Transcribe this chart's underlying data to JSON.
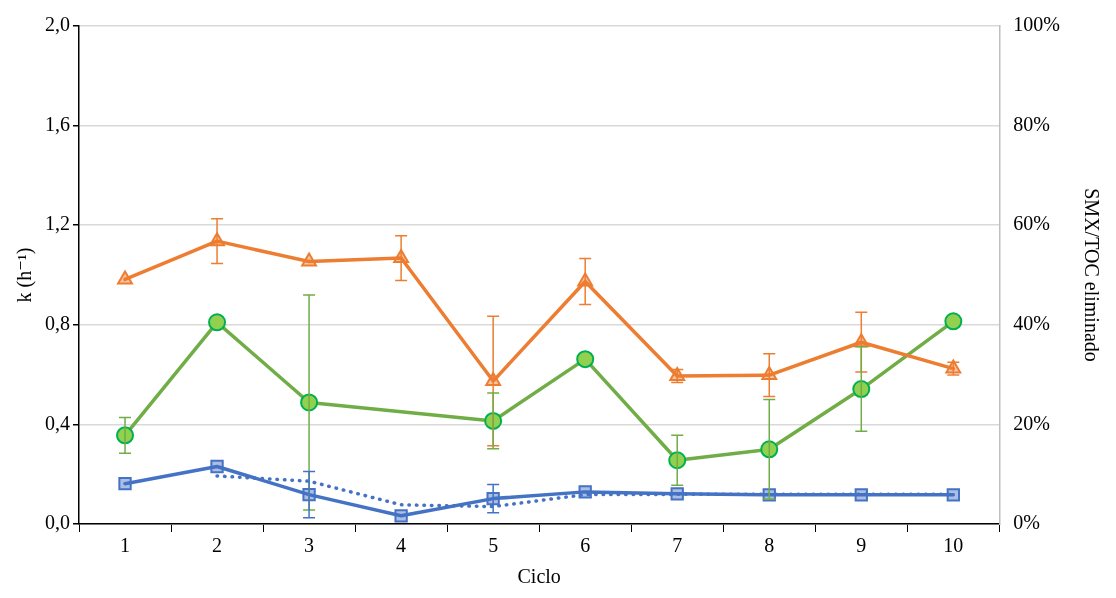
{
  "chart_data": {
    "type": "line",
    "xlabel": "Ciclo",
    "ylabel": "k (h⁻¹)",
    "y2label": "SMX/TOC eliminado",
    "categories": [
      "1",
      "2",
      "3",
      "4",
      "5",
      "6",
      "7",
      "8",
      "9",
      "10"
    ],
    "ylim": [
      0,
      2
    ],
    "yticks": [
      {
        "value": 0,
        "label": "0,0"
      },
      {
        "value": 0.4,
        "label": "0,4"
      },
      {
        "value": 0.8,
        "label": "0,8"
      },
      {
        "value": 1.2,
        "label": "1,2"
      },
      {
        "value": 1.6,
        "label": "1,6"
      },
      {
        "value": 2,
        "label": "2,0"
      }
    ],
    "y2lim": [
      0,
      100
    ],
    "y2ticks": [
      {
        "value": 0,
        "label": "0%"
      },
      {
        "value": 20,
        "label": "20%"
      },
      {
        "value": 40,
        "label": "40%"
      },
      {
        "value": 60,
        "label": "60%"
      },
      {
        "value": 80,
        "label": "80%"
      },
      {
        "value": 100,
        "label": "100%"
      }
    ],
    "grid": "y",
    "legend": false,
    "series": [
      {
        "color": "#ed7d31",
        "axis": "y2",
        "marker": "triangle",
        "values": [
          49.1,
          56.8,
          52.7,
          53.4,
          28.7,
          48.7,
          29.7,
          29.9,
          36.5,
          31.2
        ],
        "errors": [
          null,
          4.5,
          null,
          4.5,
          13,
          4.6,
          1.3,
          4.3,
          6,
          1.3
        ]
      },
      {
        "color": "#70ad47",
        "axis": "y2",
        "marker": "circle",
        "values": [
          17.8,
          40.5,
          24.4,
          null,
          20.7,
          33.1,
          12.8,
          15,
          27.1,
          40.7
        ],
        "errors": [
          3.6,
          null,
          21.6,
          null,
          5.6,
          null,
          5,
          10,
          8.5,
          null
        ]
      },
      {
        "color": "#4472c4",
        "marker": "square",
        "values": [
          0.162,
          0.231,
          0.118,
          0.033,
          0.102,
          0.129,
          0.121,
          0.117,
          0.117,
          0.117
        ],
        "errors": [
          null,
          null,
          0.093,
          null,
          0.057,
          null,
          null,
          null,
          null,
          null
        ]
      },
      {
        "color": "#4472c4",
        "marker": "none",
        "line_style": "dotted",
        "values": [
          null,
          0.193,
          0.172,
          0.077,
          0.07,
          0.118,
          0.119,
          0.119,
          0.119,
          0.119
        ]
      }
    ]
  }
}
